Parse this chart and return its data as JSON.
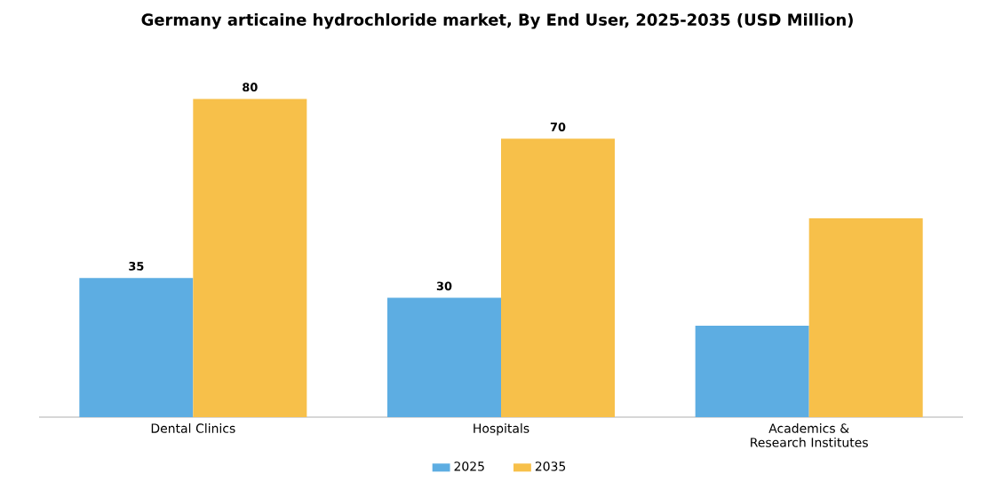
{
  "chart_data": {
    "type": "bar",
    "title": "Germany articaine hydrochloride market, By End User, 2025-2035 (USD Million)",
    "categories": [
      "Dental Clinics",
      "Hospitals",
      "Academics & Research Institutes"
    ],
    "series": [
      {
        "name": "2025",
        "color": "#5dade2",
        "values": [
          35,
          30,
          23
        ],
        "value_labels": [
          "35",
          "30",
          null
        ]
      },
      {
        "name": "2035",
        "color": "#f7c04a",
        "values": [
          80,
          70,
          50
        ],
        "value_labels": [
          "80",
          "70",
          null
        ]
      }
    ],
    "legend": "bottom"
  }
}
